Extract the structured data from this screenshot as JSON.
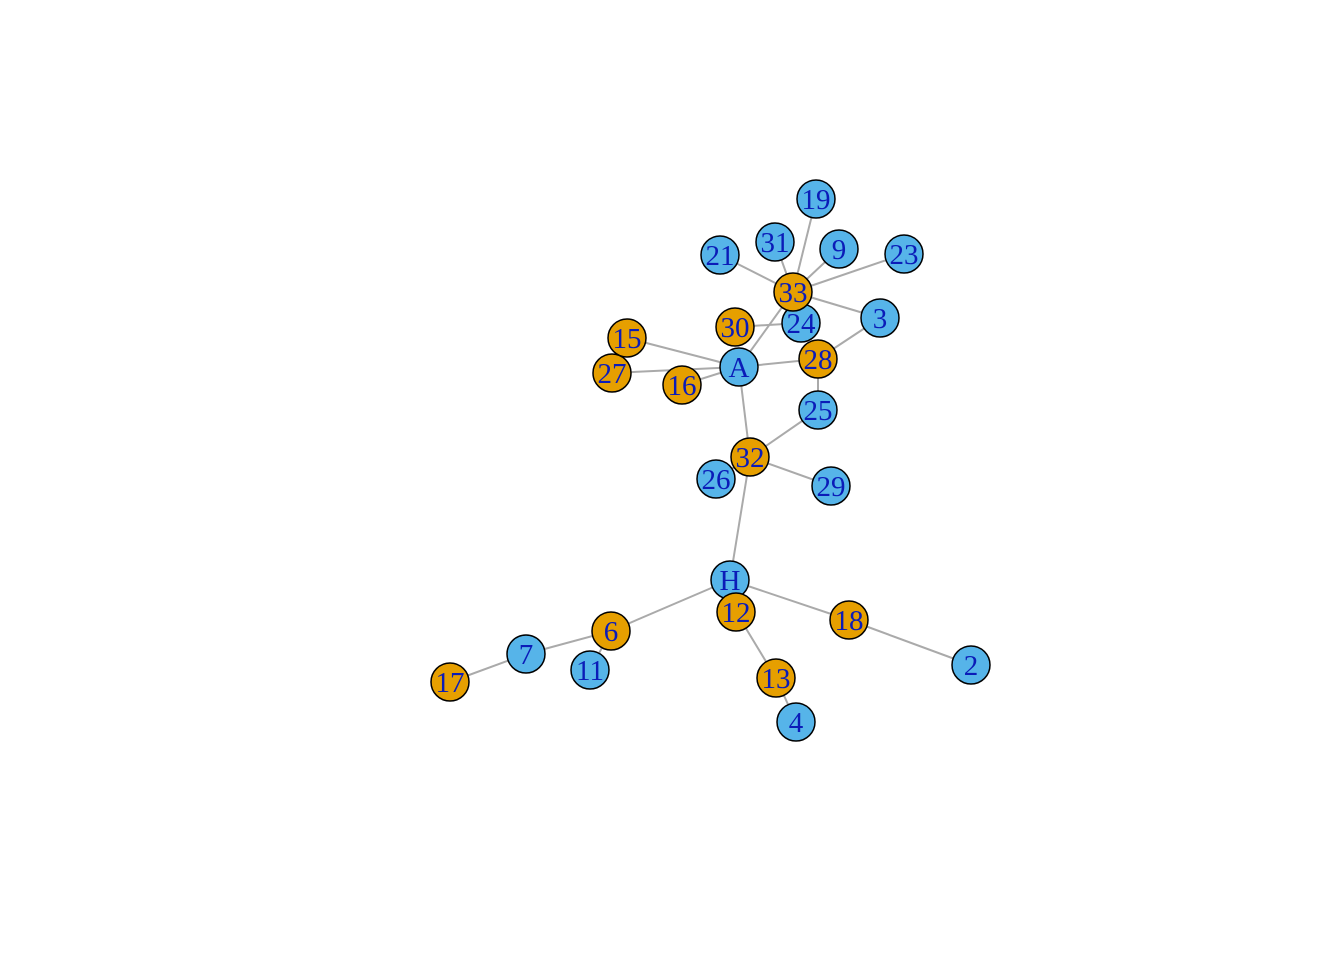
{
  "colors": {
    "group_blue": "#56b4e9",
    "group_orange": "#e69f00",
    "edge": "#aaaaaa",
    "label": "#0b1cb8",
    "outline": "#000000"
  },
  "nodes": [
    {
      "id": "A",
      "group": "blue"
    },
    {
      "id": "H",
      "group": "blue"
    },
    {
      "id": "2",
      "group": "blue"
    },
    {
      "id": "3",
      "group": "blue"
    },
    {
      "id": "4",
      "group": "blue"
    },
    {
      "id": "6",
      "group": "orange"
    },
    {
      "id": "7",
      "group": "blue"
    },
    {
      "id": "9",
      "group": "blue"
    },
    {
      "id": "11",
      "group": "blue"
    },
    {
      "id": "12",
      "group": "orange"
    },
    {
      "id": "13",
      "group": "orange"
    },
    {
      "id": "15",
      "group": "orange"
    },
    {
      "id": "16",
      "group": "orange"
    },
    {
      "id": "17",
      "group": "orange"
    },
    {
      "id": "18",
      "group": "orange"
    },
    {
      "id": "19",
      "group": "blue"
    },
    {
      "id": "21",
      "group": "blue"
    },
    {
      "id": "23",
      "group": "blue"
    },
    {
      "id": "24",
      "group": "blue"
    },
    {
      "id": "25",
      "group": "blue"
    },
    {
      "id": "26",
      "group": "blue"
    },
    {
      "id": "27",
      "group": "orange"
    },
    {
      "id": "28",
      "group": "orange"
    },
    {
      "id": "29",
      "group": "blue"
    },
    {
      "id": "30",
      "group": "orange"
    },
    {
      "id": "31",
      "group": "blue"
    },
    {
      "id": "32",
      "group": "orange"
    },
    {
      "id": "33",
      "group": "orange"
    }
  ],
  "edges": [
    [
      "A",
      "15"
    ],
    [
      "A",
      "27"
    ],
    [
      "A",
      "16"
    ],
    [
      "A",
      "28"
    ],
    [
      "A",
      "33"
    ],
    [
      "A",
      "32"
    ],
    [
      "33",
      "19"
    ],
    [
      "33",
      "31"
    ],
    [
      "33",
      "9"
    ],
    [
      "33",
      "23"
    ],
    [
      "33",
      "21"
    ],
    [
      "33",
      "3"
    ],
    [
      "33",
      "24"
    ],
    [
      "30",
      "24"
    ],
    [
      "28",
      "3"
    ],
    [
      "28",
      "25"
    ],
    [
      "32",
      "25"
    ],
    [
      "32",
      "26"
    ],
    [
      "32",
      "29"
    ],
    [
      "32",
      "H"
    ],
    [
      "H",
      "6"
    ],
    [
      "H",
      "12"
    ],
    [
      "H",
      "18"
    ],
    [
      "6",
      "7"
    ],
    [
      "7",
      "17"
    ],
    [
      "6",
      "11"
    ],
    [
      "12",
      "13"
    ],
    [
      "13",
      "4"
    ],
    [
      "18",
      "2"
    ]
  ]
}
